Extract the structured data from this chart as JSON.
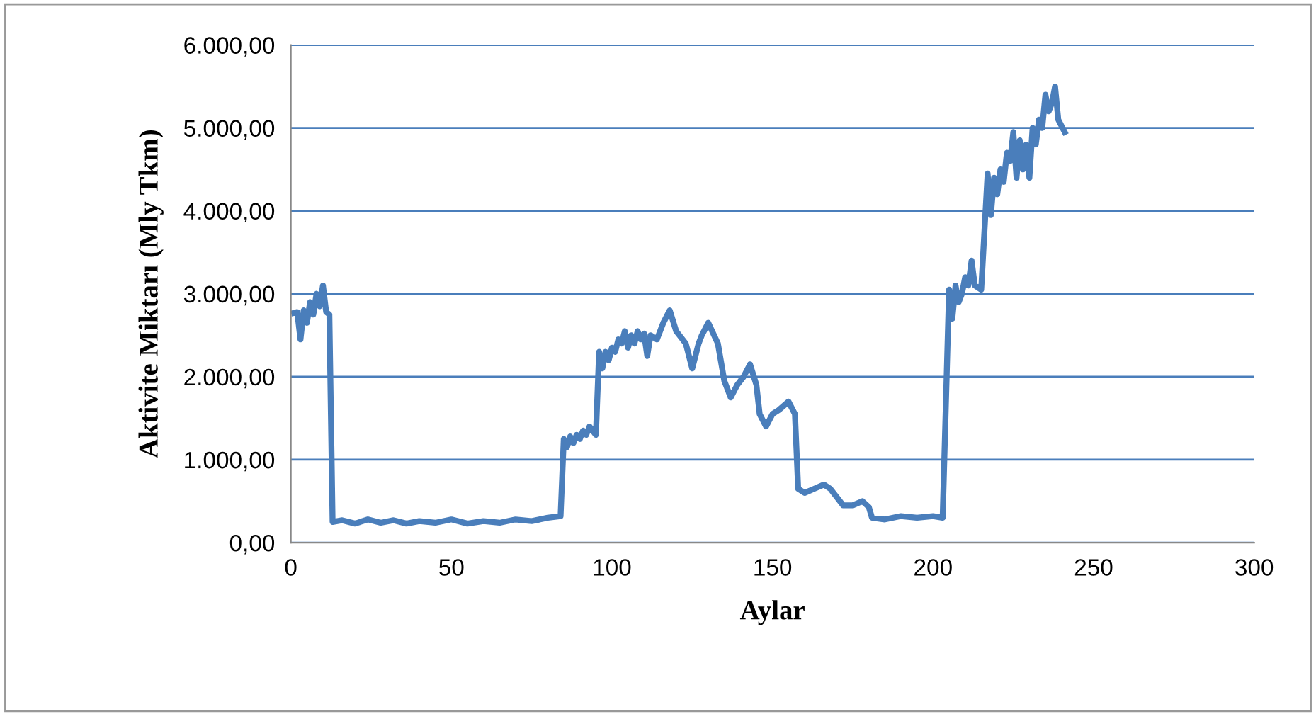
{
  "chart_data": {
    "type": "line",
    "xlabel": "Aylar",
    "ylabel": "Aktivite Miktarı (Mly Tkm)",
    "xlim": [
      0,
      300
    ],
    "xticks": [
      0,
      50,
      100,
      150,
      200,
      250,
      300
    ],
    "ylim": [
      0,
      6000
    ],
    "yticks": [
      {
        "value": 0,
        "label": "0,00"
      },
      {
        "value": 1000,
        "label": "1.000,00"
      },
      {
        "value": 2000,
        "label": "2.000,00"
      },
      {
        "value": 3000,
        "label": "3.000,00"
      },
      {
        "value": 4000,
        "label": "4.000,00"
      },
      {
        "value": 5000,
        "label": "5.000,00"
      },
      {
        "value": 6000,
        "label": "6.000,00"
      }
    ],
    "grid": "y",
    "legend": false,
    "marker": "none",
    "line_style": "solid",
    "series": [
      {
        "color": "#4a7ebb",
        "x": [
          1,
          2,
          3,
          4,
          5,
          6,
          7,
          8,
          9,
          10,
          11,
          12,
          13,
          16,
          20,
          24,
          28,
          32,
          36,
          40,
          45,
          50,
          55,
          60,
          65,
          70,
          75,
          80,
          84,
          85,
          86,
          87,
          88,
          89,
          90,
          91,
          92,
          93,
          95,
          96,
          97,
          98,
          99,
          100,
          101,
          102,
          103,
          104,
          105,
          106,
          107,
          108,
          109,
          110,
          111,
          112,
          114,
          116,
          118,
          120,
          123,
          125,
          127,
          128,
          130,
          133,
          135,
          137,
          139,
          141,
          143,
          145,
          146,
          148,
          150,
          152,
          155,
          157,
          158,
          160,
          163,
          166,
          168,
          172,
          175,
          178,
          180,
          181,
          185,
          190,
          195,
          200,
          203,
          205,
          206,
          207,
          208,
          209,
          210,
          211,
          212,
          213,
          215,
          217,
          218,
          219,
          220,
          221,
          222,
          223,
          224,
          225,
          226,
          227,
          228,
          229,
          230,
          231,
          232,
          233,
          234,
          235,
          236,
          237,
          238,
          239,
          241
        ],
        "values": [
          2770,
          2780,
          2450,
          2800,
          2650,
          2900,
          2750,
          3000,
          2850,
          3100,
          2780,
          2750,
          250,
          270,
          230,
          280,
          240,
          270,
          230,
          260,
          240,
          280,
          230,
          260,
          240,
          280,
          260,
          300,
          320,
          1250,
          1150,
          1280,
          1200,
          1300,
          1250,
          1350,
          1300,
          1400,
          1300,
          2300,
          2100,
          2300,
          2200,
          2350,
          2300,
          2450,
          2400,
          2550,
          2350,
          2500,
          2400,
          2550,
          2450,
          2520,
          2250,
          2500,
          2450,
          2650,
          2800,
          2550,
          2400,
          2100,
          2400,
          2500,
          2650,
          2400,
          1950,
          1750,
          1900,
          2000,
          2150,
          1900,
          1550,
          1400,
          1550,
          1600,
          1700,
          1550,
          650,
          600,
          650,
          700,
          650,
          450,
          450,
          500,
          430,
          300,
          280,
          320,
          300,
          320,
          300,
          3050,
          2700,
          3100,
          2900,
          3000,
          3200,
          3100,
          3400,
          3100,
          3050,
          4450,
          3950,
          4400,
          4200,
          4500,
          4350,
          4700,
          4600,
          4950,
          4400,
          4850,
          4500,
          4800,
          4400,
          5000,
          4800,
          5100,
          5000,
          5400,
          5200,
          5300,
          5500,
          5100,
          4950
        ]
      }
    ]
  }
}
